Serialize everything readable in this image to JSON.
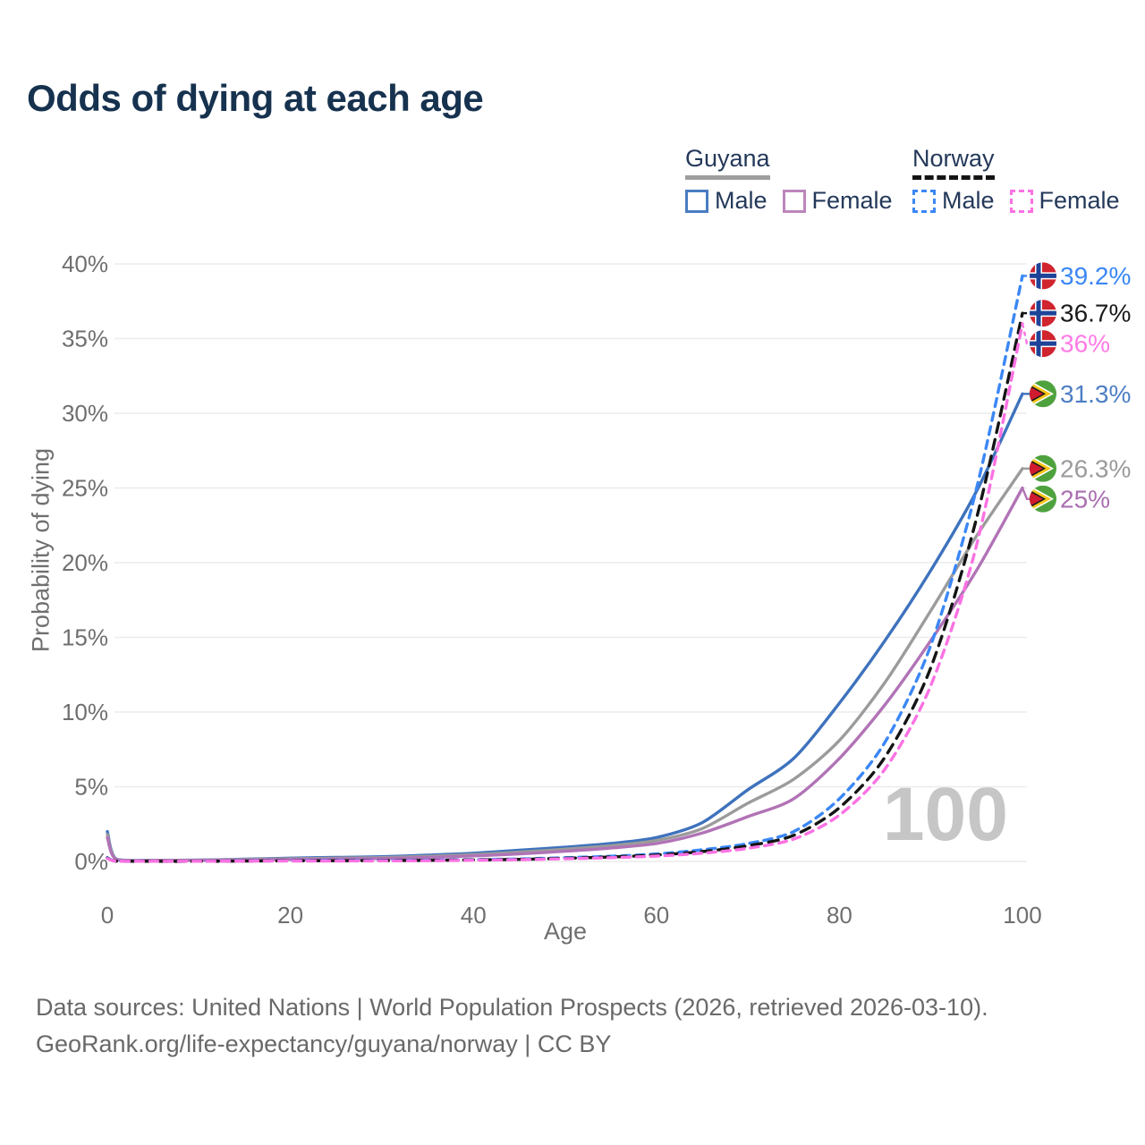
{
  "title": "Odds of dying at each age",
  "watermark": "100",
  "colors": {
    "title_text": "#16324f",
    "axis_text": "#6f6f6f",
    "gridline": "#ececec",
    "watermark": "#c6c6c6",
    "footer_text": "#696969",
    "legend_text": "#24395a"
  },
  "legend": {
    "groups": [
      {
        "label": "Guyana",
        "underline_style": "solid",
        "underline_color": "#9e9e9e",
        "items": [
          {
            "label": "Male",
            "color": "#4a7cc1",
            "line_style": "solid"
          },
          {
            "label": "Female",
            "color": "#bd85bb",
            "line_style": "solid"
          }
        ]
      },
      {
        "label": "Norway",
        "underline_style": "dashed",
        "underline_color": "#141414",
        "items": [
          {
            "label": "Male",
            "color": "#3b87f5",
            "line_style": "dashed"
          },
          {
            "label": "Female",
            "color": "#fb71e3",
            "line_style": "dashed"
          }
        ]
      }
    ]
  },
  "footer": {
    "line1": "Data sources: United Nations | World Population Prospects (2026, retrieved 2026-03-10).",
    "line2": "GeoRank.org/life-expectancy/guyana/norway | CC BY"
  },
  "chart_data": {
    "type": "line",
    "title": "Odds of dying at each age",
    "xlabel": "Age",
    "ylabel": "Probability of dying",
    "xlim": [
      0,
      100
    ],
    "ylim": [
      0,
      40
    ],
    "grid": "horizontal",
    "legend_position": "top-right",
    "xticks": [
      {
        "v": 0,
        "label": "0"
      },
      {
        "v": 20,
        "label": "20"
      },
      {
        "v": 40,
        "label": "40"
      },
      {
        "v": 60,
        "label": "60"
      },
      {
        "v": 80,
        "label": "80"
      },
      {
        "v": 100,
        "label": "100"
      }
    ],
    "yticks": [
      {
        "v": 0,
        "label": "0%"
      },
      {
        "v": 5,
        "label": "5%"
      },
      {
        "v": 10,
        "label": "10%"
      },
      {
        "v": 15,
        "label": "15%"
      },
      {
        "v": 20,
        "label": "20%"
      },
      {
        "v": 25,
        "label": "25%"
      },
      {
        "v": 30,
        "label": "30%"
      },
      {
        "v": 35,
        "label": "35%"
      },
      {
        "v": 40,
        "label": "40%"
      }
    ],
    "x": [
      0,
      1,
      5,
      10,
      15,
      20,
      25,
      30,
      35,
      40,
      45,
      50,
      55,
      60,
      65,
      70,
      75,
      80,
      85,
      90,
      95,
      100
    ],
    "series": [
      {
        "name": "Guyana Male",
        "country": "Guyana",
        "sex": "Male",
        "color": "#3e72bd",
        "line_style": "solid",
        "values": [
          2.0,
          0.15,
          0.08,
          0.09,
          0.15,
          0.22,
          0.27,
          0.32,
          0.42,
          0.55,
          0.75,
          0.95,
          1.2,
          1.6,
          2.6,
          4.8,
          6.9,
          10.6,
          14.8,
          19.5,
          24.8,
          31.3
        ],
        "end_label": {
          "text": "31.3%",
          "color": "#4d7fc4",
          "flag": "guyana"
        }
      },
      {
        "name": "Guyana Both sexes",
        "country": "Guyana",
        "sex": "Both",
        "color": "#9b9b9b",
        "line_style": "solid",
        "values": [
          1.8,
          0.14,
          0.07,
          0.08,
          0.13,
          0.18,
          0.22,
          0.26,
          0.35,
          0.46,
          0.62,
          0.82,
          1.05,
          1.4,
          2.2,
          3.9,
          5.5,
          8.1,
          12.0,
          16.8,
          21.8,
          26.3
        ],
        "end_label": {
          "text": "26.3%",
          "color": "#9b9b9b",
          "flag": "guyana"
        }
      },
      {
        "name": "Guyana Female",
        "country": "Guyana",
        "sex": "Female",
        "color": "#b173b6",
        "line_style": "solid",
        "values": [
          1.6,
          0.12,
          0.06,
          0.07,
          0.1,
          0.13,
          0.16,
          0.2,
          0.27,
          0.37,
          0.5,
          0.68,
          0.9,
          1.2,
          1.9,
          3.0,
          4.2,
          6.9,
          10.5,
          14.8,
          19.5,
          25.0
        ],
        "end_label": {
          "text": "25%",
          "color": "#aa6fb0",
          "flag": "guyana"
        }
      },
      {
        "name": "Norway Male",
        "country": "Norway",
        "sex": "Male",
        "color": "#3b87f5",
        "line_style": "dashed",
        "values": [
          0.25,
          0.02,
          0.01,
          0.01,
          0.03,
          0.06,
          0.07,
          0.08,
          0.09,
          0.12,
          0.17,
          0.25,
          0.35,
          0.5,
          0.78,
          1.2,
          2.0,
          4.2,
          8.0,
          14.5,
          25.0,
          39.2
        ],
        "end_label": {
          "text": "39.2%",
          "color": "#3b87f5",
          "flag": "norway"
        }
      },
      {
        "name": "Norway Both sexes",
        "country": "Norway",
        "sex": "Both",
        "color": "#141414",
        "line_style": "dashed",
        "values": [
          0.22,
          0.02,
          0.01,
          0.01,
          0.025,
          0.045,
          0.05,
          0.06,
          0.07,
          0.1,
          0.14,
          0.21,
          0.3,
          0.43,
          0.66,
          1.05,
          1.75,
          3.6,
          7.0,
          13.0,
          23.0,
          36.7
        ],
        "end_label": {
          "text": "36.7%",
          "color": "#1a1a1a",
          "flag": "norway"
        }
      },
      {
        "name": "Norway Female",
        "country": "Norway",
        "sex": "Female",
        "color": "#fb71e3",
        "line_style": "dashed",
        "values": [
          0.2,
          0.02,
          0.01,
          0.01,
          0.02,
          0.03,
          0.03,
          0.04,
          0.05,
          0.08,
          0.12,
          0.18,
          0.25,
          0.36,
          0.55,
          0.88,
          1.5,
          3.1,
          6.2,
          11.8,
          21.2,
          36.0
        ],
        "end_label": {
          "text": "36%",
          "color": "#ff7ae5",
          "flag": "norway"
        }
      }
    ],
    "flag_colors": {
      "norway": {
        "red": "#d0242f",
        "white": "#ffffff",
        "blue": "#1f4398"
      },
      "guyana": {
        "green": "#4ea23e",
        "white": "#ffffff",
        "gold": "#f5c518",
        "black": "#1a1a1a",
        "red": "#d01b2f"
      }
    }
  }
}
